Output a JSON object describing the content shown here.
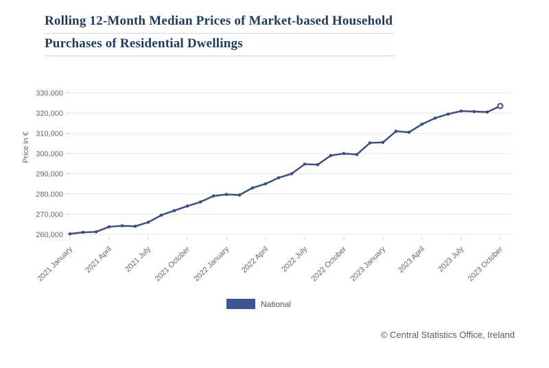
{
  "title": {
    "line1": "Rolling 12-Month Median Prices of Market-based Household",
    "line2": "Purchases of Residential Dwellings"
  },
  "legend": {
    "label": "National",
    "swatch_color": "#3e5691"
  },
  "footer": {
    "copyright": "© Central Statistics Office, Ireland"
  },
  "colors": {
    "title_text": "#1c3c5e",
    "series_line": "#374f88",
    "gridline": "#e6e6e6",
    "tick": "#cccccc",
    "axis_text": "#666666"
  },
  "chart_data": {
    "type": "line",
    "title": "Rolling 12-Month Median Prices of Market-based Household Purchases of Residential Dwellings",
    "xlabel": "",
    "ylabel": "Price in €",
    "ylim": [
      260000,
      330000
    ],
    "ytick_step": 10000,
    "ytick_labels": [
      "260,000",
      "270,000",
      "280,000",
      "290,000",
      "300,000",
      "310,000",
      "320,000",
      "330,000"
    ],
    "xtick_every": 3,
    "xtick_labels": [
      "2021 January",
      "2021 April",
      "2021 July",
      "2021 October",
      "2022 January",
      "2022 April",
      "2022 July",
      "2022 October",
      "2023 January",
      "2023 April",
      "2023 July",
      "2023 October"
    ],
    "grid": true,
    "legend_position": "bottom",
    "categories": [
      "2021 January",
      "2021 February",
      "2021 March",
      "2021 April",
      "2021 May",
      "2021 June",
      "2021 July",
      "2021 August",
      "2021 September",
      "2021 October",
      "2021 November",
      "2021 December",
      "2022 January",
      "2022 February",
      "2022 March",
      "2022 April",
      "2022 May",
      "2022 June",
      "2022 July",
      "2022 August",
      "2022 September",
      "2022 October",
      "2022 November",
      "2022 December",
      "2023 January",
      "2023 February",
      "2023 March",
      "2023 April",
      "2023 May",
      "2023 June",
      "2023 July",
      "2023 August",
      "2023 September",
      "2023 October"
    ],
    "series": [
      {
        "name": "National",
        "color": "#374f88",
        "values": [
          260250,
          261000,
          261250,
          263750,
          264250,
          264000,
          266000,
          269500,
          271750,
          274000,
          276000,
          279000,
          279750,
          279500,
          283000,
          285000,
          288000,
          290000,
          294750,
          294500,
          299000,
          300000,
          299500,
          305250,
          305500,
          311000,
          310500,
          314500,
          317500,
          319500,
          321000,
          320750,
          320500,
          323500
        ]
      }
    ],
    "last_point_style": "open-circle"
  }
}
